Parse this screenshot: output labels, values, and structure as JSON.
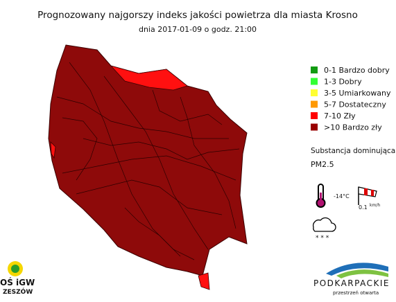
{
  "header": {
    "title": "Prognozowany najgorszy indeks jakości powietrza dla miasta Krosno",
    "subtitle": "dnia 2017-01-09 o godz. 21:00"
  },
  "legend": {
    "items": [
      {
        "label": "0-1 Bardzo dobry",
        "color": "#129b12"
      },
      {
        "label": "1-3 Dobry",
        "color": "#33ff33"
      },
      {
        "label": "3-5 Umiarkowany",
        "color": "#ffff33"
      },
      {
        "label": "5-7 Dostateczny",
        "color": "#ff9900"
      },
      {
        "label": "7-10 Zły",
        "color": "#ff0000"
      },
      {
        "label": ">10 Bardzo zły",
        "color": "#990000"
      }
    ]
  },
  "pollutant": {
    "heading": "Substancja dominująca:",
    "value": "PM2.5"
  },
  "weather": {
    "temperature": "-14°C",
    "wind_speed": "0.1",
    "wind_unit": "km/h"
  },
  "logos": {
    "left_top": "OŚ iGW",
    "left_bottom": "ZESZÓW",
    "right_name": "PODKARPACKIE",
    "right_tagline": "przestrzeń otwarta"
  }
}
